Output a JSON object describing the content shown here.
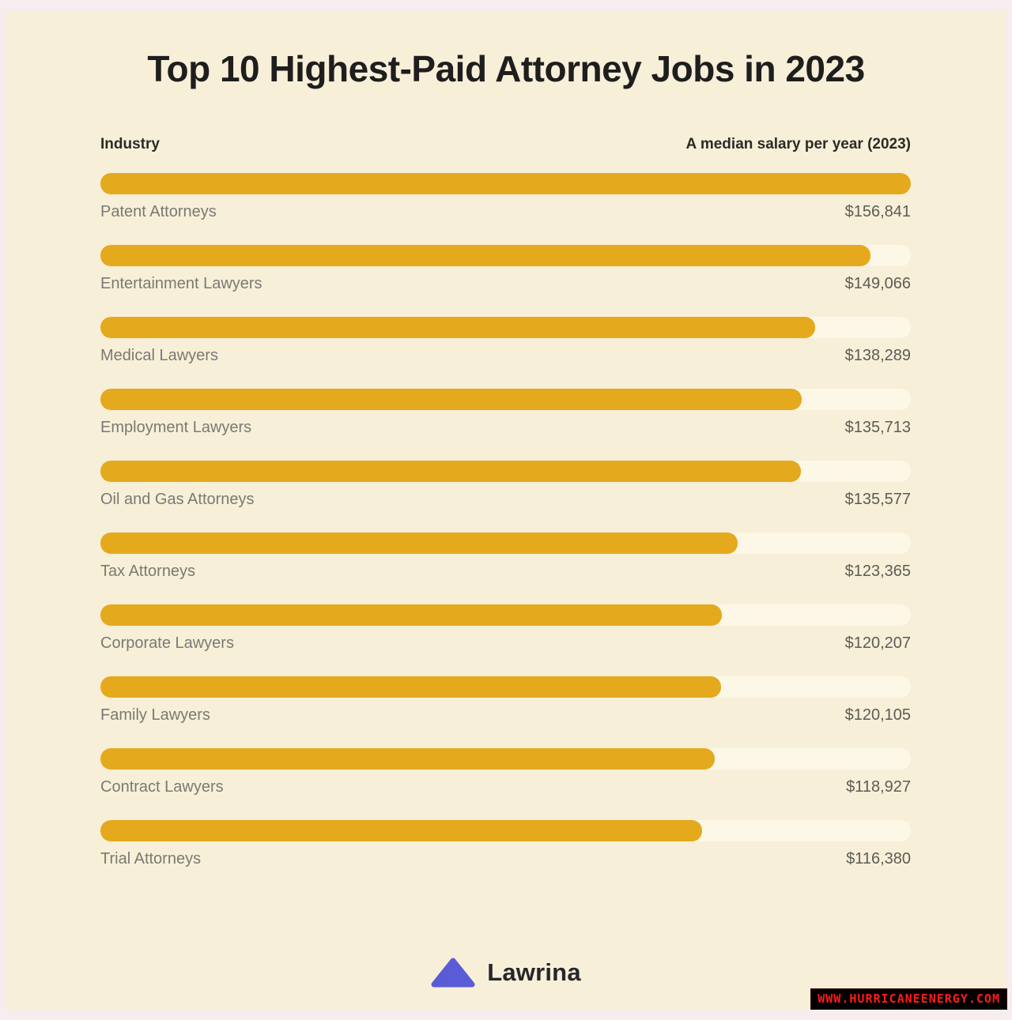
{
  "page": {
    "title": "Top 10 Highest-Paid Attorney Jobs in 2023"
  },
  "columns": {
    "left_header": "Industry",
    "right_header": "A median salary per year (2023)"
  },
  "chart_data": {
    "type": "bar",
    "orientation": "horizontal",
    "title": "Top 10 Highest-Paid Attorney Jobs in 2023",
    "xlabel": "A median salary per year (2023)",
    "ylabel": "Industry",
    "xlim": [
      0,
      156841
    ],
    "grid": false,
    "legend": false,
    "categories": [
      "Patent Attorneys",
      "Entertainment Lawyers",
      "Medical Lawyers",
      "Employment Lawyers",
      "Oil and Gas Attorneys",
      "Tax Attorneys",
      "Corporate Lawyers",
      "Family Lawyers",
      "Contract Lawyers",
      "Trial Attorneys"
    ],
    "values": [
      156841,
      149066,
      138289,
      135713,
      135577,
      123365,
      120207,
      120105,
      118927,
      116380
    ],
    "value_labels": [
      "$156,841",
      "$149,066",
      "$138,289",
      "$135,713",
      "$135,577",
      "$123,365",
      "$120,207",
      "$120,105",
      "$118,927",
      "$116,380"
    ],
    "bar_color": "#e5a91e",
    "track_color": "#fcf7e7"
  },
  "footer": {
    "brand": "Lawrina",
    "logo_color": "#5a5bd7"
  },
  "watermark": {
    "text": "WWW.HURRICANEENERGY.COM",
    "text_color": "#ff1b1b",
    "background_color": "#000000"
  },
  "colors": {
    "page_background": "#f8efd8",
    "outer_margin": "#f7edef",
    "title_text": "#1e1e1e",
    "header_text": "#2b2b26",
    "category_text": "#7a7974",
    "value_text": "#5c5b56"
  }
}
